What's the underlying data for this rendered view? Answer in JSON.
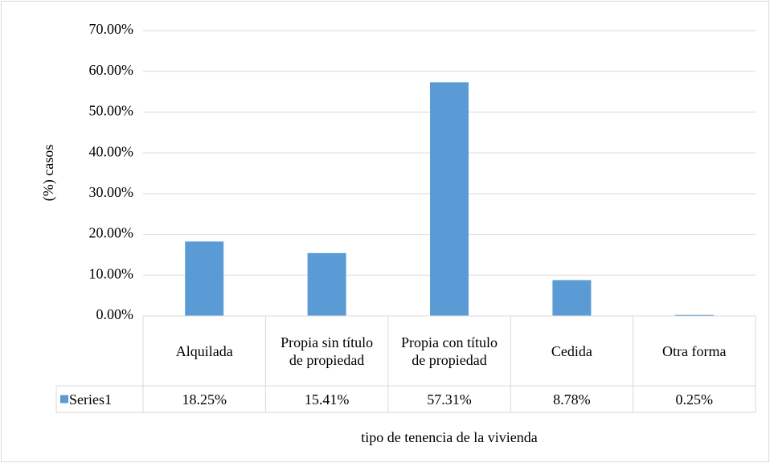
{
  "chart_data": {
    "type": "bar",
    "y_axis_label": "(%) casos",
    "x_axis_label": "tipo de tenencia de la vivienda",
    "categories": [
      "Alquilada",
      "Propia sin título de propiedad",
      "Propia con título de propiedad",
      "Cedida",
      "Otra forma"
    ],
    "series": [
      {
        "name": "Series1",
        "color": "#5b9bd5",
        "values": [
          18.25,
          15.41,
          57.31,
          8.78,
          0.25
        ],
        "value_labels": [
          "18.25%",
          "15.41%",
          "57.31%",
          "8.78%",
          "0.25%"
        ]
      }
    ],
    "ylim": [
      0,
      70
    ],
    "yticks": [
      {
        "value": 0,
        "label": "0.00%"
      },
      {
        "value": 10,
        "label": "10.00%"
      },
      {
        "value": 20,
        "label": "20.00%"
      },
      {
        "value": 30,
        "label": "30.00%"
      },
      {
        "value": 40,
        "label": "40.00%"
      },
      {
        "value": 50,
        "label": "50.00%"
      },
      {
        "value": 60,
        "label": "60.00%"
      },
      {
        "value": 70,
        "label": "70.00%"
      }
    ],
    "grid": true,
    "data_table": true
  }
}
